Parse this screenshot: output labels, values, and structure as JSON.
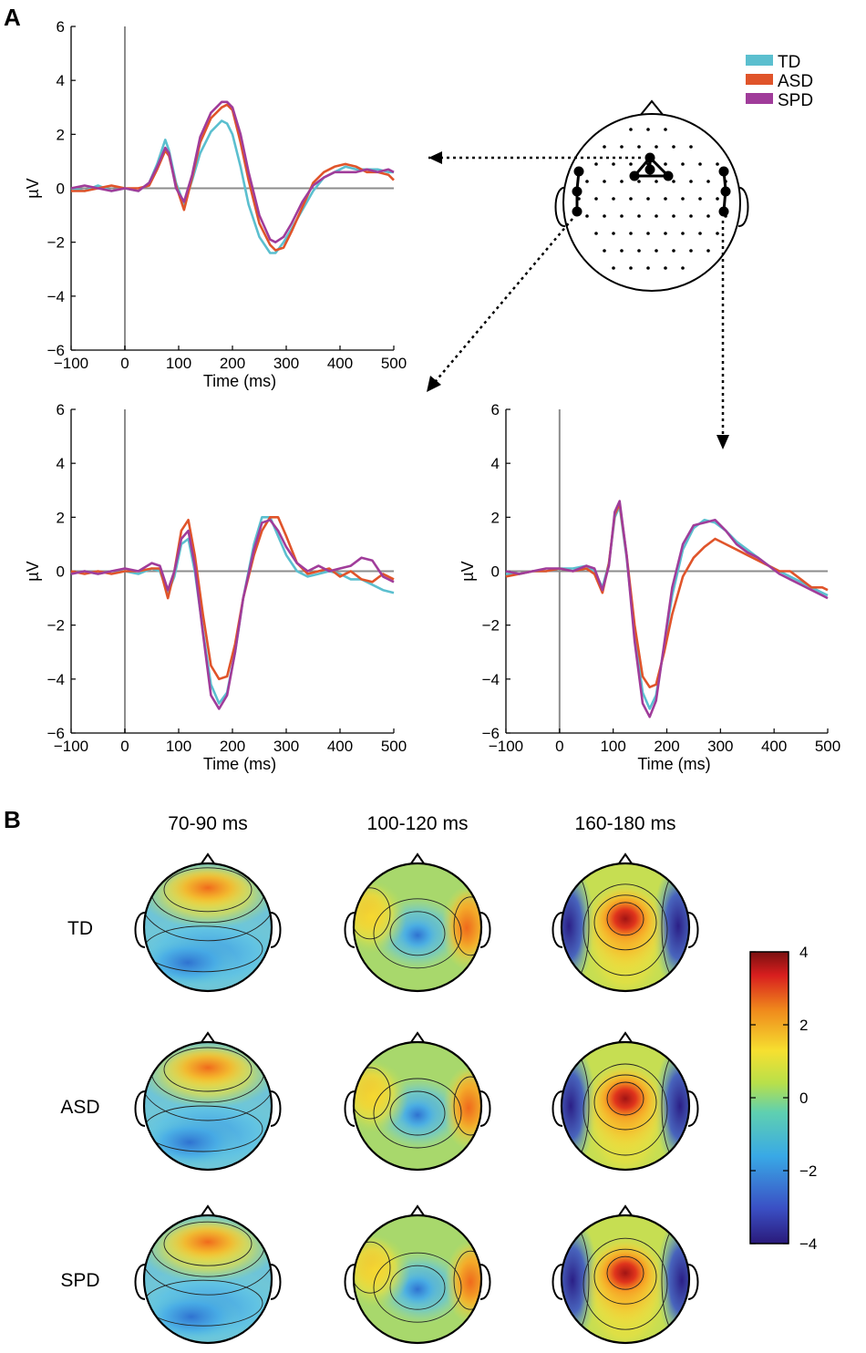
{
  "panels": {
    "a": "A",
    "b": "B"
  },
  "legend": [
    {
      "name": "TD",
      "color": "#5bbfcf"
    },
    {
      "name": "ASD",
      "color": "#e0542a"
    },
    {
      "name": "SPD",
      "color": "#a03c9a"
    }
  ],
  "chart_data": [
    {
      "type": "line",
      "id": "erp-fronto-central",
      "xlabel": "Time (ms)",
      "ylabel": "µV",
      "xlim": [
        -100,
        500
      ],
      "ylim": [
        -6,
        6
      ],
      "xticks": [
        -100,
        0,
        100,
        200,
        300,
        400,
        500
      ],
      "yticks": [
        -6,
        -4,
        -2,
        0,
        2,
        4,
        6
      ],
      "x": [
        -100,
        -75,
        -50,
        -25,
        0,
        25,
        45,
        60,
        75,
        82,
        95,
        110,
        125,
        140,
        160,
        180,
        190,
        200,
        215,
        230,
        250,
        270,
        280,
        295,
        310,
        330,
        350,
        370,
        390,
        410,
        430,
        450,
        470,
        490,
        500
      ],
      "series": [
        {
          "name": "TD",
          "values": [
            0.0,
            -0.1,
            0.1,
            -0.1,
            0.0,
            -0.1,
            0.2,
            0.9,
            1.8,
            1.4,
            0.2,
            -0.6,
            0.3,
            1.3,
            2.1,
            2.5,
            2.4,
            2.0,
            0.8,
            -0.6,
            -1.8,
            -2.4,
            -2.4,
            -2.0,
            -1.5,
            -0.8,
            -0.1,
            0.4,
            0.6,
            0.8,
            0.7,
            0.7,
            0.7,
            0.6,
            0.6
          ]
        },
        {
          "name": "ASD",
          "values": [
            -0.1,
            -0.1,
            0.0,
            0.1,
            0.0,
            0.0,
            0.1,
            0.7,
            1.4,
            1.2,
            0.1,
            -0.8,
            0.4,
            1.7,
            2.6,
            3.0,
            3.1,
            2.9,
            1.7,
            0.3,
            -1.3,
            -2.1,
            -2.3,
            -2.2,
            -1.6,
            -0.7,
            0.2,
            0.6,
            0.8,
            0.9,
            0.8,
            0.6,
            0.6,
            0.5,
            0.3
          ]
        },
        {
          "name": "SPD",
          "values": [
            0.0,
            0.1,
            0.0,
            -0.1,
            0.0,
            -0.1,
            0.2,
            0.8,
            1.5,
            1.3,
            0.0,
            -0.5,
            0.5,
            1.9,
            2.8,
            3.2,
            3.2,
            3.0,
            2.0,
            0.6,
            -1.0,
            -1.9,
            -2.0,
            -1.8,
            -1.3,
            -0.5,
            0.1,
            0.4,
            0.6,
            0.6,
            0.6,
            0.7,
            0.6,
            0.7,
            0.6
          ]
        }
      ]
    },
    {
      "type": "line",
      "id": "erp-left-temporal",
      "xlabel": "Time (ms)",
      "ylabel": "µV",
      "xlim": [
        -100,
        500
      ],
      "ylim": [
        -6,
        6
      ],
      "xticks": [
        -100,
        0,
        100,
        200,
        300,
        400,
        500
      ],
      "yticks": [
        -6,
        -4,
        -2,
        0,
        2,
        4,
        6
      ],
      "x": [
        -100,
        -75,
        -50,
        -25,
        0,
        25,
        50,
        65,
        80,
        92,
        105,
        118,
        130,
        145,
        160,
        175,
        190,
        205,
        220,
        240,
        255,
        270,
        285,
        300,
        320,
        340,
        360,
        380,
        400,
        420,
        440,
        460,
        480,
        500
      ],
      "series": [
        {
          "name": "TD",
          "values": [
            -0.1,
            0.0,
            -0.1,
            0.0,
            0.0,
            -0.1,
            0.1,
            0.0,
            -0.8,
            -0.2,
            1.0,
            1.2,
            0.0,
            -2.2,
            -4.2,
            -4.9,
            -4.5,
            -3.0,
            -1.0,
            1.0,
            2.0,
            2.0,
            1.3,
            0.6,
            0.0,
            -0.2,
            -0.1,
            0.0,
            -0.1,
            -0.3,
            -0.3,
            -0.5,
            -0.7,
            -0.8
          ]
        },
        {
          "name": "ASD",
          "values": [
            0.0,
            -0.1,
            0.0,
            -0.1,
            0.0,
            0.0,
            0.1,
            0.1,
            -1.0,
            0.0,
            1.5,
            1.9,
            0.6,
            -1.6,
            -3.5,
            -4.0,
            -3.9,
            -2.7,
            -1.0,
            0.6,
            1.5,
            2.0,
            2.0,
            1.3,
            0.3,
            -0.1,
            0.0,
            0.1,
            -0.2,
            0.0,
            -0.3,
            -0.4,
            -0.1,
            -0.3
          ]
        },
        {
          "name": "SPD",
          "values": [
            -0.1,
            0.0,
            -0.1,
            0.0,
            0.1,
            0.0,
            0.3,
            0.2,
            -0.7,
            0.0,
            1.2,
            1.5,
            0.2,
            -2.3,
            -4.6,
            -5.1,
            -4.6,
            -3.0,
            -1.0,
            0.8,
            1.8,
            1.9,
            1.5,
            0.9,
            0.3,
            0.0,
            0.2,
            0.0,
            0.1,
            0.2,
            0.5,
            0.4,
            -0.2,
            -0.4
          ]
        }
      ]
    },
    {
      "type": "line",
      "id": "erp-right-temporal",
      "xlabel": "Time (ms)",
      "ylabel": "µV",
      "xlim": [
        -100,
        500
      ],
      "ylim": [
        -6,
        6
      ],
      "xticks": [
        -100,
        0,
        100,
        200,
        300,
        400,
        500
      ],
      "yticks": [
        -6,
        -4,
        -2,
        0,
        2,
        4,
        6
      ],
      "x": [
        -100,
        -75,
        -50,
        -25,
        0,
        25,
        50,
        65,
        80,
        92,
        103,
        112,
        125,
        140,
        155,
        168,
        180,
        195,
        210,
        230,
        250,
        270,
        290,
        310,
        330,
        350,
        370,
        390,
        410,
        430,
        450,
        470,
        490,
        500
      ],
      "series": [
        {
          "name": "TD",
          "values": [
            -0.1,
            -0.1,
            0.0,
            0.0,
            0.1,
            0.1,
            0.2,
            0.0,
            -0.6,
            0.3,
            2.0,
            2.4,
            0.5,
            -2.3,
            -4.5,
            -5.1,
            -4.6,
            -2.8,
            -0.9,
            0.8,
            1.6,
            1.9,
            1.8,
            1.5,
            1.1,
            0.8,
            0.5,
            0.2,
            0.0,
            -0.2,
            -0.4,
            -0.6,
            -0.8,
            -0.9
          ]
        },
        {
          "name": "ASD",
          "values": [
            -0.2,
            -0.1,
            0.0,
            0.0,
            0.1,
            0.0,
            0.1,
            -0.1,
            -0.8,
            0.3,
            2.1,
            2.5,
            0.6,
            -2.0,
            -3.9,
            -4.3,
            -4.2,
            -3.0,
            -1.6,
            -0.2,
            0.5,
            0.9,
            1.2,
            1.0,
            0.8,
            0.6,
            0.4,
            0.2,
            0.0,
            0.0,
            -0.3,
            -0.6,
            -0.6,
            -0.7
          ]
        },
        {
          "name": "SPD",
          "values": [
            0.0,
            -0.1,
            0.0,
            0.1,
            0.1,
            0.0,
            0.2,
            0.1,
            -0.7,
            0.2,
            2.2,
            2.6,
            0.6,
            -2.6,
            -4.9,
            -5.4,
            -4.8,
            -2.7,
            -0.6,
            1.0,
            1.7,
            1.8,
            1.9,
            1.5,
            1.0,
            0.7,
            0.5,
            0.2,
            -0.1,
            -0.3,
            -0.5,
            -0.7,
            -0.9,
            -1.0
          ]
        }
      ]
    },
    {
      "type": "heatmap",
      "id": "scalp-topographies",
      "columns": [
        "70-90 ms",
        "100-120 ms",
        "160-180 ms"
      ],
      "rows": [
        "TD",
        "ASD",
        "SPD"
      ],
      "colorbar": {
        "min": -4,
        "max": 4,
        "ticks": [
          4,
          2,
          0,
          -2,
          -4
        ]
      }
    }
  ]
}
